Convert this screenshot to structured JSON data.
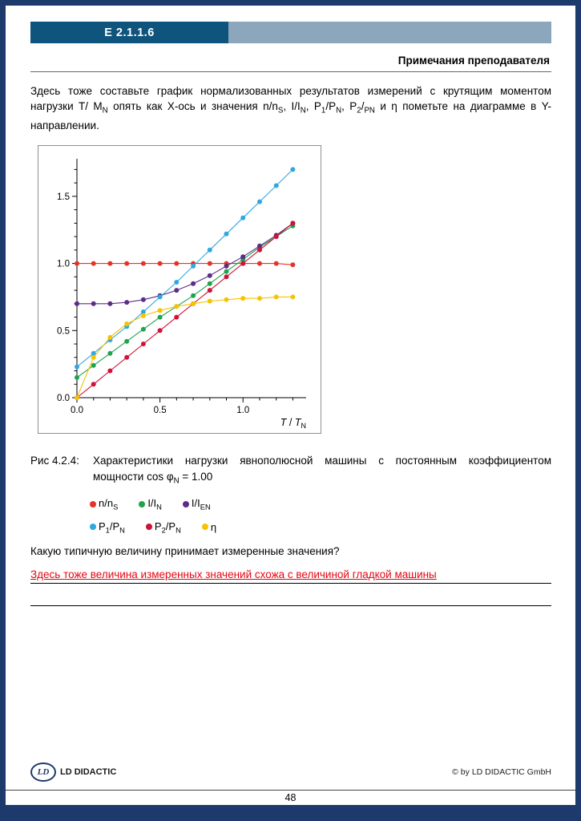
{
  "page": {
    "header_code": "E 2.1.1.6",
    "notes_title": "Примечания преподавателя",
    "intro_rich": [
      {
        "t": "Здесь тоже составьте график нормализованных результатов измерений с крутящим моментом нагрузки T/ M"
      },
      {
        "t": "N",
        "sub": true
      },
      {
        "t": " опять как X-ось и значения n/n"
      },
      {
        "t": "S",
        "sub": true
      },
      {
        "t": ", I/I"
      },
      {
        "t": "N",
        "sub": true
      },
      {
        "t": ", P"
      },
      {
        "t": "1",
        "sub": true
      },
      {
        "t": "/P"
      },
      {
        "t": "N",
        "sub": true
      },
      {
        "t": ", P"
      },
      {
        "t": "2",
        "sub": true
      },
      {
        "t": "/"
      },
      {
        "t": "PN",
        "sub": true
      },
      {
        "t": " и η пометьте на диаграмме в Y-направлении."
      }
    ],
    "caption_label": "Рис 4.2.4:",
    "caption_rich": [
      {
        "t": "Характеристики нагрузки явнополюсной машины с постоянным коэффициентом мощности cos φ"
      },
      {
        "t": "N",
        "sub": true
      },
      {
        "t": " = 1.00"
      }
    ],
    "question": "Какую типичную величину принимает измеренные значения?",
    "answer": "Здесь тоже величина измеренных значений схожа с величиной гладкой машины",
    "footer_logo": "LD",
    "footer_left": "LD DIDACTIC",
    "footer_right": "© by LD DIDACTIC GmbH",
    "page_number": "48"
  },
  "legend": [
    {
      "color": "#e63329",
      "rich": [
        {
          "t": "n/n"
        },
        {
          "t": "S",
          "sub": true
        }
      ]
    },
    {
      "color": "#1fa34c",
      "rich": [
        {
          "t": "I/I"
        },
        {
          "t": "N",
          "sub": true
        }
      ]
    },
    {
      "color": "#5c2d87",
      "rich": [
        {
          "t": "I/I"
        },
        {
          "t": "EN",
          "sub": true
        }
      ]
    },
    {
      "color": "#2fa8e0",
      "rich": [
        {
          "t": "P"
        },
        {
          "t": "1",
          "sub": true
        },
        {
          "t": "/P"
        },
        {
          "t": "N",
          "sub": true
        }
      ]
    },
    {
      "color": "#cf1237",
      "rich": [
        {
          "t": "P"
        },
        {
          "t": "2",
          "sub": true
        },
        {
          "t": "/P"
        },
        {
          "t": "N",
          "sub": true
        }
      ]
    },
    {
      "color": "#f5c400",
      "rich": [
        {
          "t": "η"
        }
      ]
    }
  ],
  "chart_data": {
    "type": "line",
    "title": "",
    "xlabel": "T / T_N",
    "ylabel": "",
    "xlabel_rich": [
      {
        "t": "T",
        "i": true
      },
      {
        "t": " / "
      },
      {
        "t": "T",
        "i": true
      },
      {
        "t": "N",
        "sub": true
      }
    ],
    "x": [
      0,
      0.1,
      0.2,
      0.3,
      0.4,
      0.5,
      0.6,
      0.7,
      0.8,
      0.9,
      1.0,
      1.1,
      1.2,
      1.3
    ],
    "series": [
      {
        "name": "n/n_S",
        "color": "#e63329",
        "values": [
          1,
          1,
          1,
          1,
          1,
          1,
          1,
          1,
          1,
          1,
          1,
          1,
          1,
          0.99
        ]
      },
      {
        "name": "I/I_N",
        "color": "#1fa34c",
        "values": [
          0.15,
          0.24,
          0.33,
          0.42,
          0.51,
          0.6,
          0.68,
          0.76,
          0.85,
          0.94,
          1.03,
          1.12,
          1.2,
          1.28
        ]
      },
      {
        "name": "I/I_EN",
        "color": "#5c2d87",
        "values": [
          0.7,
          0.7,
          0.7,
          0.71,
          0.73,
          0.76,
          0.8,
          0.85,
          0.91,
          0.98,
          1.05,
          1.13,
          1.21,
          1.3
        ]
      },
      {
        "name": "P_1/P_N",
        "color": "#2fa8e0",
        "values": [
          0.23,
          0.33,
          0.43,
          0.53,
          0.64,
          0.75,
          0.86,
          0.98,
          1.1,
          1.22,
          1.34,
          1.46,
          1.58,
          1.7
        ]
      },
      {
        "name": "P_2/P_N",
        "color": "#cf1237",
        "values": [
          0,
          0.1,
          0.2,
          0.3,
          0.4,
          0.5,
          0.6,
          0.7,
          0.8,
          0.9,
          1.0,
          1.1,
          1.2,
          1.3
        ]
      },
      {
        "name": "η",
        "color": "#f5c400",
        "values": [
          0,
          0.3,
          0.45,
          0.55,
          0.61,
          0.65,
          0.68,
          0.7,
          0.72,
          0.73,
          0.74,
          0.74,
          0.75,
          0.75
        ]
      }
    ],
    "xticks": [
      0.0,
      0.5,
      1.0
    ],
    "yticks": [
      0.0,
      0.5,
      1.0,
      1.5
    ],
    "xlim": [
      0,
      1.38
    ],
    "ylim": [
      0,
      1.78
    ],
    "grid": false,
    "legend_position": "below-caption"
  }
}
